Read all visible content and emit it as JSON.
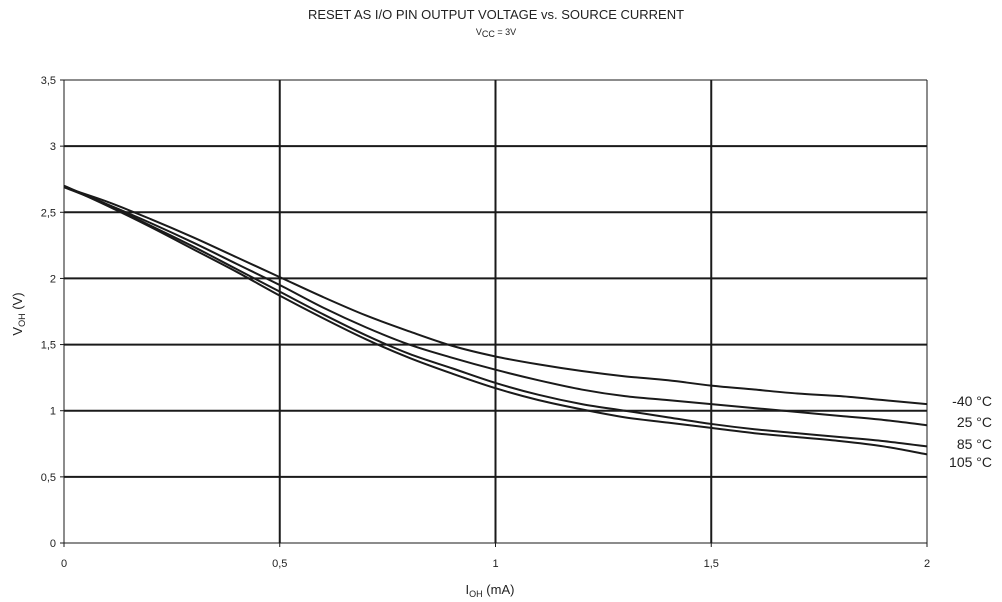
{
  "chart_data": {
    "type": "line",
    "title": "RESET AS I/O PIN OUTPUT VOLTAGE vs. SOURCE CURRENT",
    "subtitle": {
      "main": "V",
      "sub": "CC",
      "rest": " = 3V"
    },
    "xlabel": {
      "main": "I",
      "sub": "OH",
      "rest": " (mA)"
    },
    "ylabel": {
      "main": "V",
      "sub": "OH",
      "rest": " (V)"
    },
    "xlim": [
      0,
      2
    ],
    "ylim": [
      0,
      3.5
    ],
    "xticks": [
      0,
      0.5,
      1,
      1.5,
      2
    ],
    "xtick_labels": [
      "0",
      "0,5",
      "1",
      "1,5",
      "2"
    ],
    "yticks": [
      0,
      0.5,
      1,
      1.5,
      2,
      2.5,
      3,
      3.5
    ],
    "ytick_labels": [
      "0",
      "0,5",
      "1",
      "1,5",
      "2",
      "2,5",
      "3",
      "3,5"
    ],
    "grid": true,
    "line_color": "#1a1a1a",
    "series": [
      {
        "name": "-40 °C",
        "x": [
          0,
          0.1,
          0.2,
          0.3,
          0.4,
          0.5,
          0.6,
          0.7,
          0.8,
          0.9,
          1.0,
          1.1,
          1.2,
          1.3,
          1.4,
          1.5,
          1.6,
          1.7,
          1.8,
          1.9,
          2.0
        ],
        "y": [
          2.69,
          2.58,
          2.45,
          2.31,
          2.16,
          2.01,
          1.86,
          1.72,
          1.6,
          1.49,
          1.41,
          1.35,
          1.3,
          1.26,
          1.23,
          1.19,
          1.16,
          1.13,
          1.11,
          1.08,
          1.05
        ]
      },
      {
        "name": "25 °C",
        "x": [
          0,
          0.1,
          0.2,
          0.3,
          0.4,
          0.5,
          0.6,
          0.7,
          0.8,
          0.9,
          1.0,
          1.1,
          1.2,
          1.3,
          1.4,
          1.5,
          1.6,
          1.7,
          1.8,
          1.9,
          2.0
        ],
        "y": [
          2.69,
          2.56,
          2.42,
          2.27,
          2.11,
          1.95,
          1.78,
          1.63,
          1.5,
          1.4,
          1.31,
          1.23,
          1.16,
          1.11,
          1.08,
          1.05,
          1.02,
          0.99,
          0.96,
          0.93,
          0.89
        ]
      },
      {
        "name": "85 °C",
        "x": [
          0,
          0.1,
          0.2,
          0.3,
          0.4,
          0.5,
          0.6,
          0.7,
          0.8,
          0.9,
          1.0,
          1.1,
          1.2,
          1.3,
          1.4,
          1.5,
          1.6,
          1.7,
          1.8,
          1.9,
          2.0
        ],
        "y": [
          2.7,
          2.56,
          2.4,
          2.24,
          2.07,
          1.9,
          1.73,
          1.57,
          1.43,
          1.32,
          1.21,
          1.12,
          1.05,
          1.0,
          0.95,
          0.9,
          0.86,
          0.83,
          0.8,
          0.77,
          0.73
        ]
      },
      {
        "name": "105 °C",
        "x": [
          0,
          0.1,
          0.2,
          0.3,
          0.4,
          0.5,
          0.6,
          0.7,
          0.8,
          0.9,
          1.0,
          1.1,
          1.2,
          1.3,
          1.4,
          1.5,
          1.6,
          1.7,
          1.8,
          1.9,
          2.0
        ],
        "y": [
          2.7,
          2.55,
          2.39,
          2.22,
          2.05,
          1.87,
          1.7,
          1.54,
          1.4,
          1.28,
          1.17,
          1.08,
          1.01,
          0.95,
          0.91,
          0.87,
          0.83,
          0.8,
          0.77,
          0.73,
          0.67
        ]
      }
    ]
  }
}
